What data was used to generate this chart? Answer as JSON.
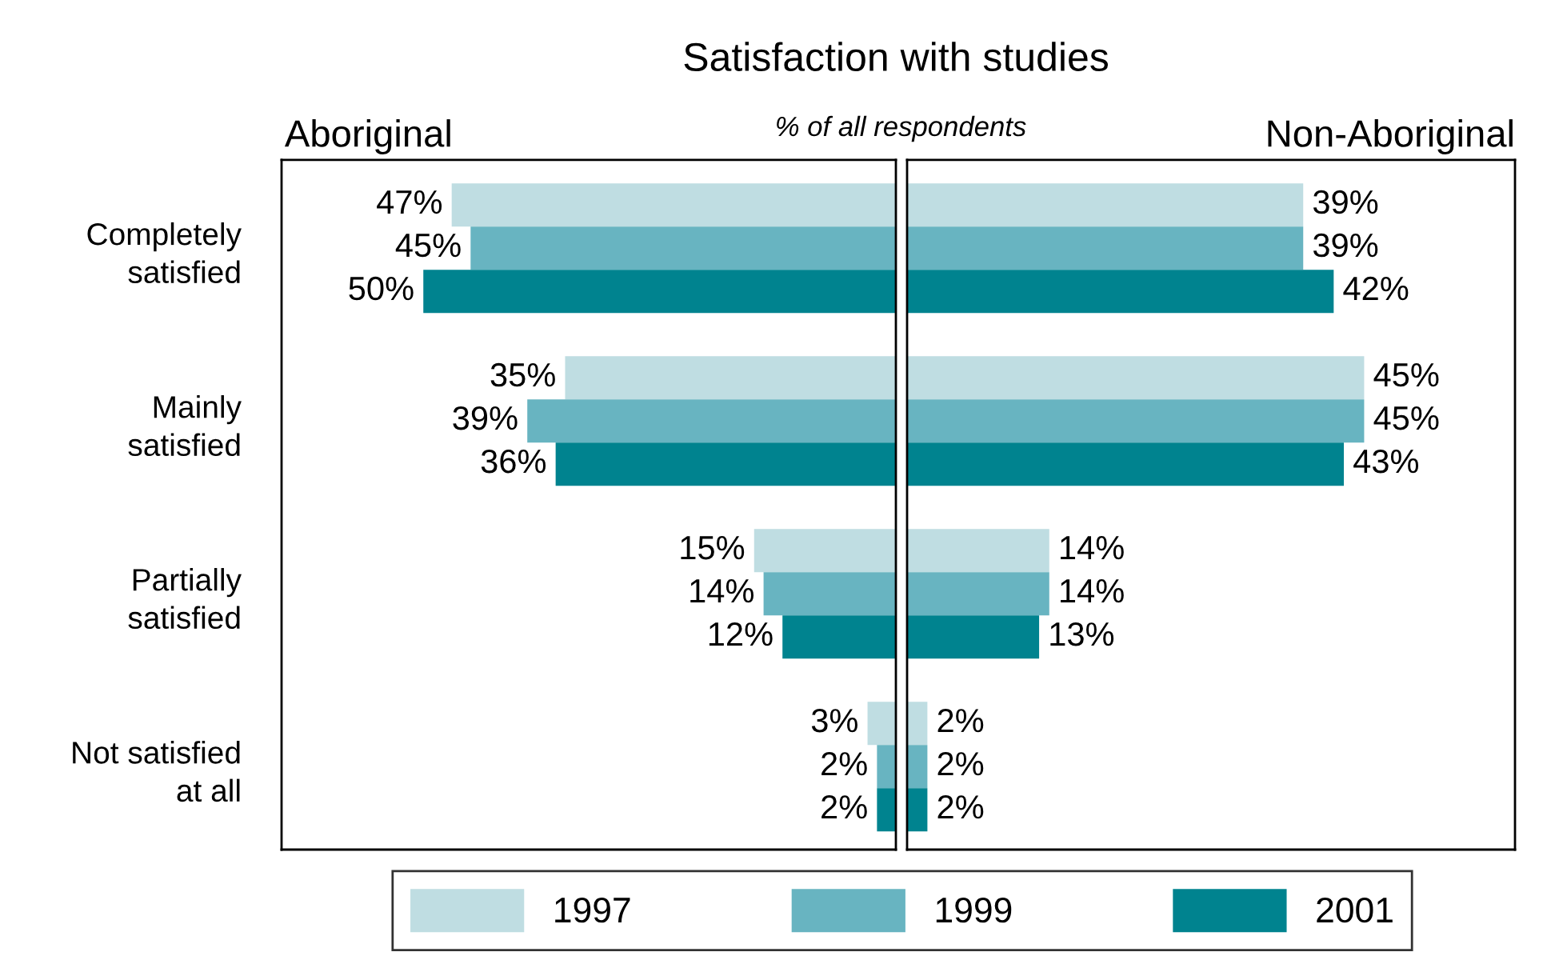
{
  "chart_data": [
    {
      "type": "bar",
      "orientation": "horizontal",
      "title": "Aboriginal",
      "annotations": [
        "Satisfaction with studies",
        "% of all respondents"
      ],
      "categories": [
        "Completely\nsatisfied",
        "Mainly\nsatisfied",
        "Partially\nsatisfied",
        "Not satisfied\nat all"
      ],
      "tick_labels": "y",
      "legend": "bottom",
      "series": [
        {
          "name": "1997",
          "color": "#bfdde2",
          "values": [
            47,
            35,
            15,
            3
          ],
          "value_labels": [
            "47%",
            "35%",
            "15%",
            "3%"
          ]
        },
        {
          "name": "1999",
          "color": "#68b4c1",
          "values": [
            45,
            39,
            14,
            2
          ],
          "value_labels": [
            "45%",
            "39%",
            "14%",
            "2%"
          ]
        },
        {
          "name": "2001",
          "color": "#00838f",
          "values": [
            50,
            36,
            12,
            2
          ],
          "value_labels": [
            "50%",
            "36%",
            "12%",
            "2%"
          ]
        }
      ]
    },
    {
      "type": "bar",
      "orientation": "horizontal",
      "title": "Non-Aboriginal",
      "categories": [
        null,
        null,
        null,
        null
      ],
      "tick_labels": false,
      "legend": "bottom",
      "series": [
        {
          "name": "1997",
          "color": "#bfdde2",
          "values": [
            39,
            45,
            14,
            2
          ],
          "value_labels": [
            "39%",
            "45%",
            "14%",
            "2%"
          ]
        },
        {
          "name": "1999",
          "color": "#68b4c1",
          "values": [
            39,
            45,
            14,
            2
          ],
          "value_labels": [
            "39%",
            "45%",
            "14%",
            "2%"
          ]
        },
        {
          "name": "2001",
          "color": "#00838f",
          "values": [
            42,
            43,
            13,
            2
          ],
          "value_labels": [
            "42%",
            "43%",
            "13%",
            "2%"
          ]
        }
      ]
    }
  ]
}
